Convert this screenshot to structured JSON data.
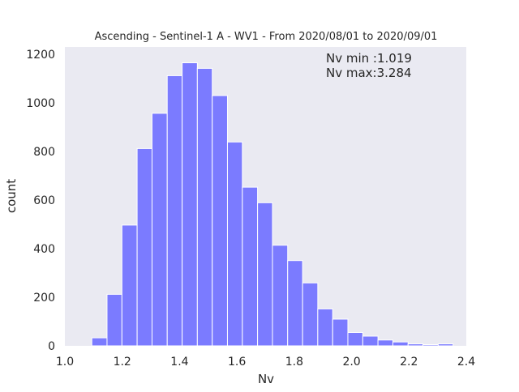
{
  "chart_data": {
    "type": "bar",
    "title": "Ascending - Sentinel-1 A - WV1 - From 2020/08/01 to 2020/09/01",
    "xlabel": "Nv",
    "ylabel": "count",
    "xlim": [
      1.0,
      2.4
    ],
    "ylim": [
      0,
      1230
    ],
    "xticks": [
      "1.0",
      "1.2",
      "1.4",
      "1.6",
      "1.8",
      "2.0",
      "2.2",
      "2.4"
    ],
    "yticks": [
      "0",
      "200",
      "400",
      "600",
      "800",
      "1000",
      "1200"
    ],
    "grid": false,
    "colors": {
      "bar": "#7b7bff",
      "plot_background": "#eaeaf2",
      "text": "#262626"
    },
    "annotations": [
      "Nv min :1.019",
      "Nv max:3.284"
    ],
    "bins": [
      {
        "x0": 1.094,
        "x1": 1.147,
        "value": 33
      },
      {
        "x0": 1.147,
        "x1": 1.199,
        "value": 212
      },
      {
        "x0": 1.199,
        "x1": 1.252,
        "value": 497
      },
      {
        "x0": 1.252,
        "x1": 1.304,
        "value": 812
      },
      {
        "x0": 1.304,
        "x1": 1.357,
        "value": 957
      },
      {
        "x0": 1.357,
        "x1": 1.409,
        "value": 1112
      },
      {
        "x0": 1.409,
        "x1": 1.462,
        "value": 1165
      },
      {
        "x0": 1.462,
        "x1": 1.514,
        "value": 1142
      },
      {
        "x0": 1.514,
        "x1": 1.567,
        "value": 1030
      },
      {
        "x0": 1.567,
        "x1": 1.619,
        "value": 839
      },
      {
        "x0": 1.619,
        "x1": 1.672,
        "value": 653
      },
      {
        "x0": 1.672,
        "x1": 1.724,
        "value": 589
      },
      {
        "x0": 1.724,
        "x1": 1.777,
        "value": 414
      },
      {
        "x0": 1.777,
        "x1": 1.829,
        "value": 351
      },
      {
        "x0": 1.829,
        "x1": 1.882,
        "value": 259
      },
      {
        "x0": 1.882,
        "x1": 1.934,
        "value": 152
      },
      {
        "x0": 1.934,
        "x1": 1.987,
        "value": 110
      },
      {
        "x0": 1.987,
        "x1": 2.039,
        "value": 55
      },
      {
        "x0": 2.039,
        "x1": 2.092,
        "value": 40
      },
      {
        "x0": 2.092,
        "x1": 2.144,
        "value": 24
      },
      {
        "x0": 2.144,
        "x1": 2.197,
        "value": 16
      },
      {
        "x0": 2.197,
        "x1": 2.249,
        "value": 8
      },
      {
        "x0": 2.249,
        "x1": 2.302,
        "value": 5
      },
      {
        "x0": 2.302,
        "x1": 2.354,
        "value": 8
      }
    ]
  }
}
